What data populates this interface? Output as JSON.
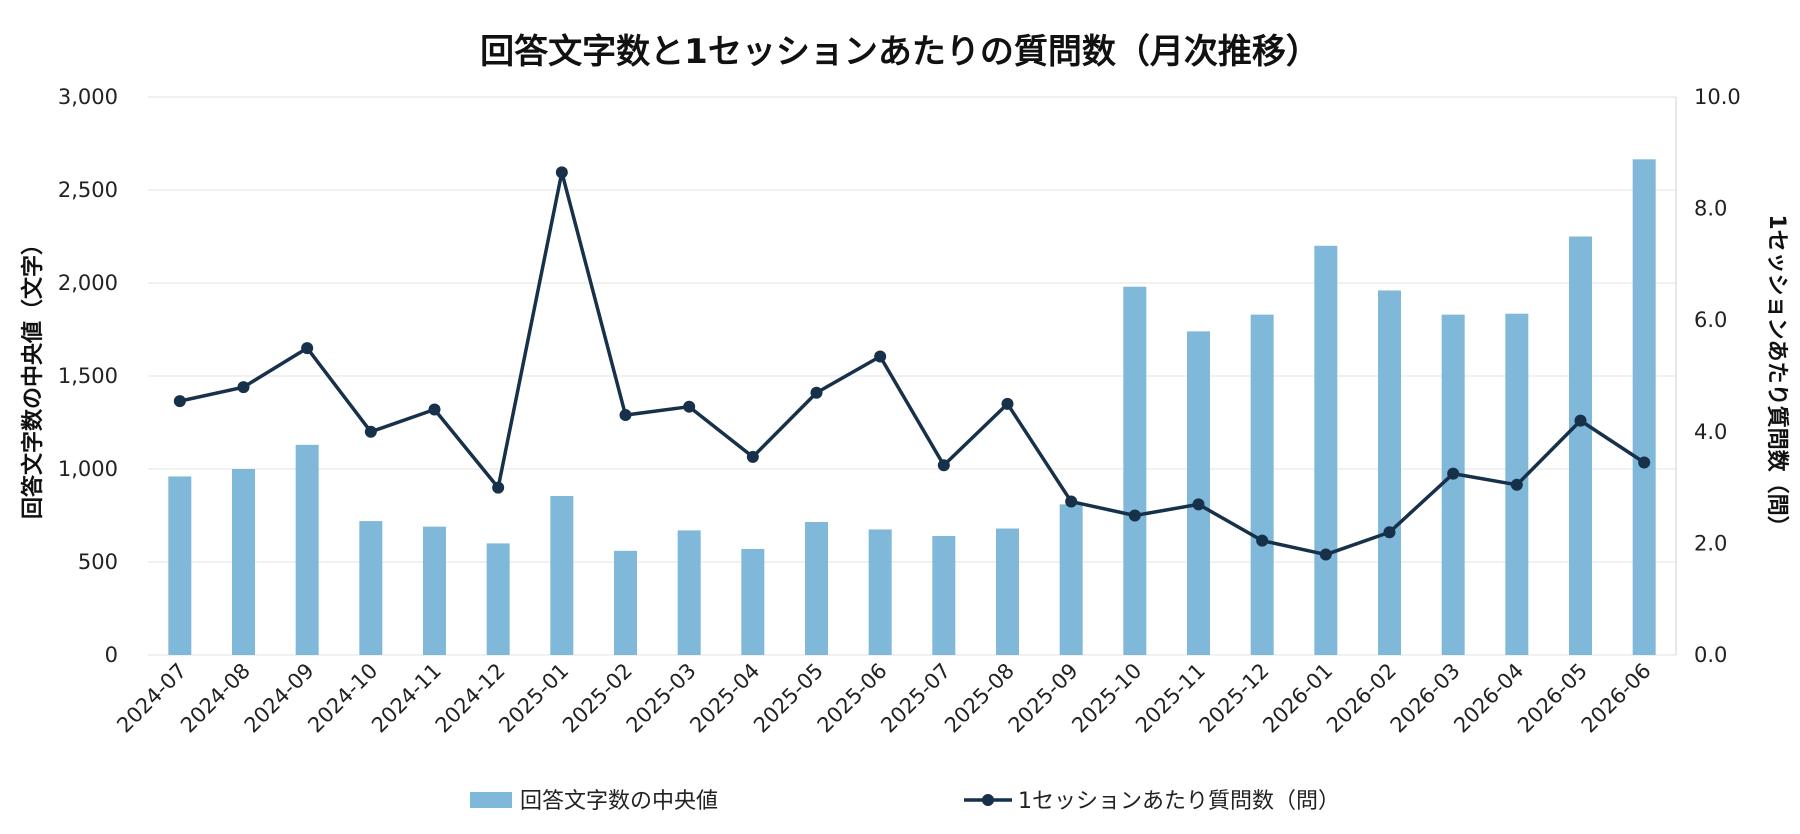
{
  "chart_data": {
    "type": "bar+line",
    "title": "回答文字数と1セッションあたりの質問数（月次推移）",
    "categories": [
      "2024-07",
      "2024-08",
      "2024-09",
      "2024-10",
      "2024-11",
      "2024-12",
      "2025-01",
      "2025-02",
      "2025-03",
      "2025-04",
      "2025-05",
      "2025-06",
      "2025-07",
      "2025-08",
      "2025-09",
      "2025-10",
      "2025-11",
      "2025-12",
      "2026-01",
      "2026-02",
      "2026-03",
      "2026-04",
      "2026-05",
      "2026-06"
    ],
    "y_left": {
      "label": "回答文字数の中央値（文字）",
      "lim": [
        0,
        3000
      ],
      "ticks": [
        "0",
        "500",
        "1,000",
        "1,500",
        "2,000",
        "2,500",
        "3,000"
      ]
    },
    "y_right": {
      "label": "1セッションあたり質問数（問）",
      "lim": [
        0,
        10
      ],
      "ticks": [
        "0.0",
        "2.0",
        "4.0",
        "6.0",
        "8.0",
        "10.0"
      ]
    },
    "grid": true,
    "legend_position": "bottom",
    "series": [
      {
        "name": "回答文字数の中央値",
        "type": "bar",
        "axis": "left",
        "color": "#7fb8d9",
        "values": [
          960,
          1000,
          1130,
          720,
          690,
          600,
          855,
          560,
          670,
          570,
          715,
          675,
          640,
          680,
          810,
          1980,
          1740,
          1830,
          2200,
          1960,
          1830,
          1835,
          2250,
          2665
        ]
      },
      {
        "name": "1セッションあたり質問数（問）",
        "type": "line",
        "axis": "right",
        "color": "#17314a",
        "values": [
          4.55,
          4.8,
          5.5,
          4.0,
          4.4,
          3.0,
          8.65,
          4.3,
          4.45,
          3.55,
          4.7,
          5.35,
          3.4,
          4.5,
          2.75,
          2.5,
          2.7,
          2.05,
          1.8,
          2.2,
          3.25,
          3.05,
          4.2,
          3.45
        ]
      }
    ]
  }
}
